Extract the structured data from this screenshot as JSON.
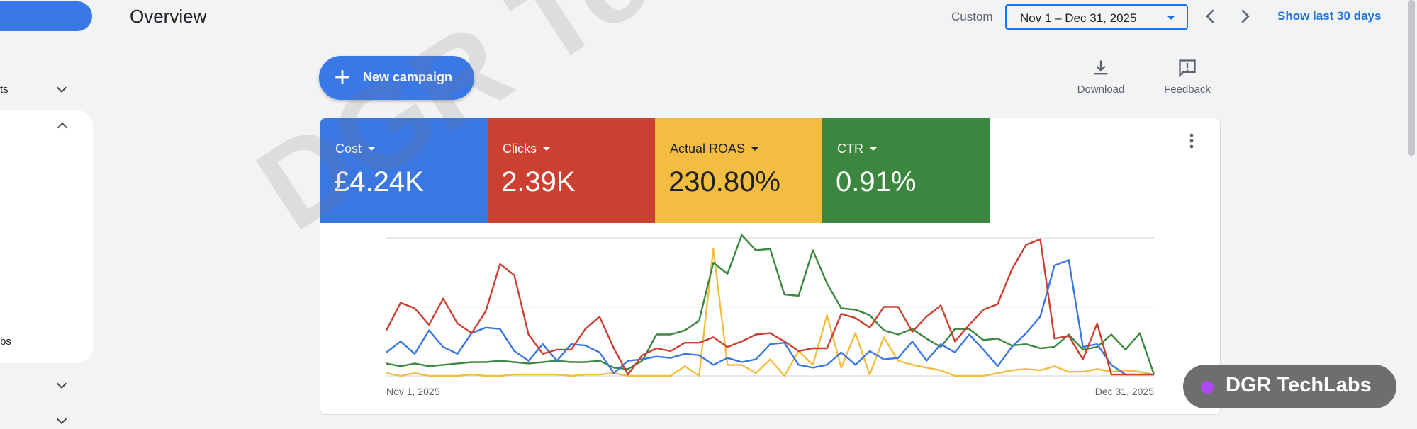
{
  "sidebar": {
    "item_1_label": "ts",
    "item_2_label": "bs"
  },
  "header": {
    "title": "Overview",
    "custom_label": "Custom",
    "date_range": "Nov 1 – Dec 31, 2025",
    "show_last": "Show last 30 days"
  },
  "toolbar": {
    "new_campaign": "New campaign",
    "download": "Download",
    "feedback": "Feedback"
  },
  "metrics": [
    {
      "name": "Cost",
      "value": "£4.24K",
      "color": "#3a77e3"
    },
    {
      "name": "Clicks",
      "value": "2.39K",
      "color": "#cc4031"
    },
    {
      "name": "Actual ROAS",
      "value": "230.80%",
      "color": "#f2bd41"
    },
    {
      "name": "CTR",
      "value": "0.91%",
      "color": "#3b873f"
    }
  ],
  "chart_data": {
    "type": "line",
    "x_start_label": "Nov 1, 2025",
    "x_end_label": "Dec 31, 2025",
    "ylim": [
      0,
      100
    ],
    "grid": true,
    "series": [
      {
        "name": "Clicks",
        "color": "#cc4031",
        "values": [
          33,
          53,
          49,
          37,
          56,
          38,
          31,
          47,
          81,
          73,
          30,
          16,
          19,
          19,
          34,
          43,
          20,
          1,
          15,
          20,
          18,
          24,
          24,
          28,
          21,
          25,
          30,
          31,
          25,
          18,
          20,
          20,
          45,
          42,
          35,
          50,
          50,
          32,
          43,
          51,
          25,
          37,
          48,
          52,
          77,
          95,
          99,
          27,
          29,
          12,
          38,
          1,
          1,
          1,
          1
        ]
      },
      {
        "name": "Cost",
        "color": "#3a77e3",
        "values": [
          17,
          25,
          16,
          33,
          21,
          16,
          31,
          35,
          34,
          18,
          11,
          23,
          11,
          23,
          22,
          17,
          2,
          11,
          12,
          14,
          13,
          16,
          15,
          8,
          13,
          10,
          12,
          23,
          24,
          8,
          6,
          8,
          17,
          8,
          18,
          12,
          13,
          25,
          11,
          23,
          17,
          30,
          19,
          7,
          21,
          31,
          43,
          80,
          84,
          21,
          23,
          8,
          1,
          1,
          1
        ]
      },
      {
        "name": "Actual ROAS",
        "color": "#f2bd41",
        "values": [
          2,
          0,
          2,
          0,
          0,
          0,
          1,
          0,
          0,
          1,
          1,
          1,
          1,
          0,
          1,
          1,
          2,
          0,
          0,
          0,
          0,
          7,
          0,
          92,
          8,
          8,
          2,
          12,
          0,
          18,
          8,
          44,
          6,
          31,
          1,
          28,
          11,
          8,
          6,
          4,
          0,
          0,
          0,
          2,
          4,
          5,
          4,
          7,
          3,
          3,
          5,
          3,
          4,
          3,
          1
        ]
      },
      {
        "name": "CTR",
        "color": "#3b873f",
        "values": [
          9,
          7,
          9,
          7,
          8,
          9,
          10,
          10,
          11,
          10,
          9,
          10,
          11,
          10,
          10,
          11,
          6,
          5,
          11,
          30,
          30,
          33,
          40,
          82,
          74,
          102,
          91,
          92,
          59,
          58,
          91,
          67,
          49,
          48,
          44,
          33,
          30,
          34,
          27,
          21,
          34,
          34,
          26,
          27,
          22,
          23,
          20,
          21,
          30,
          19,
          21,
          30,
          19,
          31,
          1
        ]
      }
    ]
  }
}
